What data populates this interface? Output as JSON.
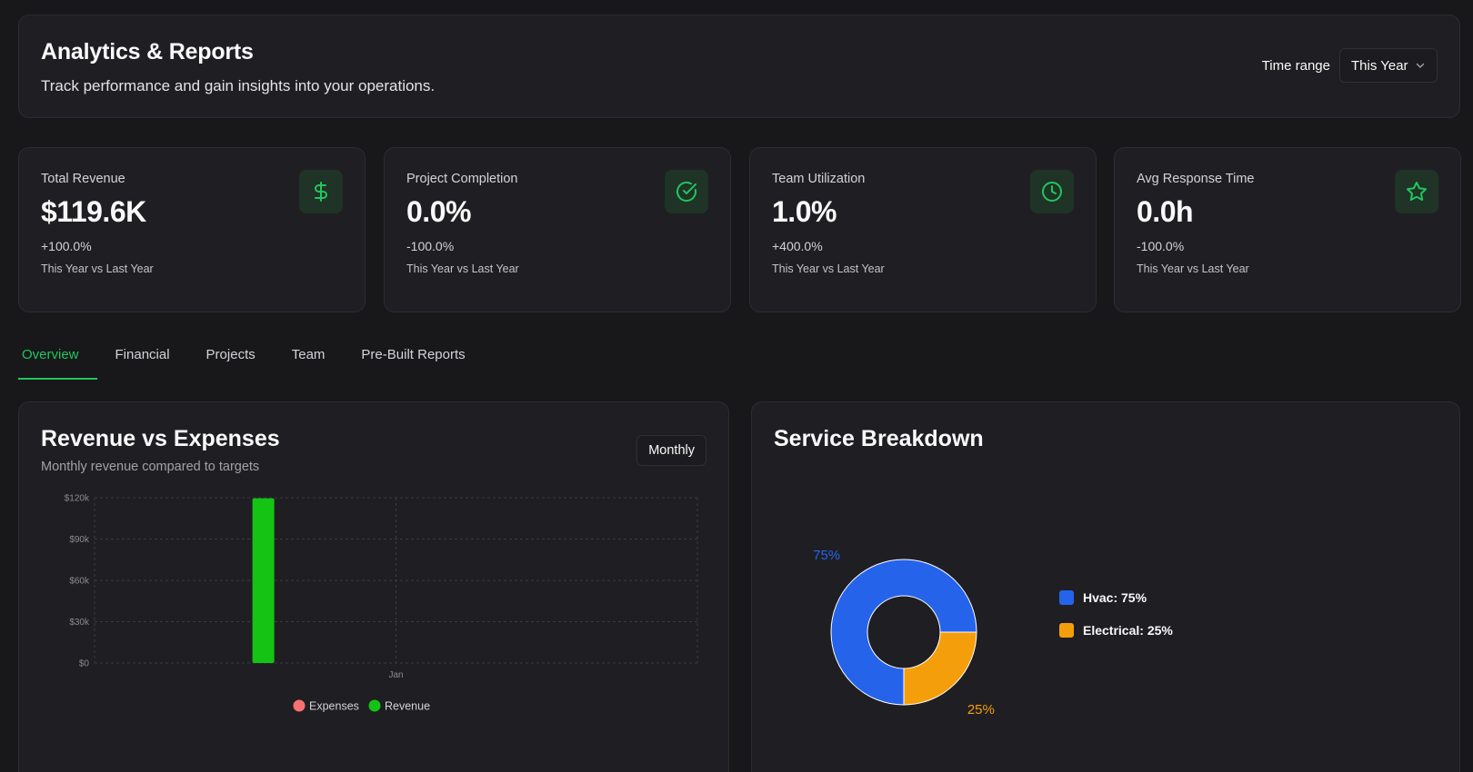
{
  "header": {
    "title": "Analytics & Reports",
    "subtitle": "Track performance and gain insights into your operations.",
    "time_range_label": "Time range",
    "time_range_value": "This Year"
  },
  "kpis": [
    {
      "label": "Total Revenue",
      "value": "$119.6K",
      "change": "+100.0%",
      "period": "This Year vs Last Year",
      "icon": "dollar-icon"
    },
    {
      "label": "Project Completion",
      "value": "0.0%",
      "change": "-100.0%",
      "period": "This Year vs Last Year",
      "icon": "check-circle-icon"
    },
    {
      "label": "Team Utilization",
      "value": "1.0%",
      "change": "+400.0%",
      "period": "This Year vs Last Year",
      "icon": "clock-icon"
    },
    {
      "label": "Avg Response Time",
      "value": "0.0h",
      "change": "-100.0%",
      "period": "This Year vs Last Year",
      "icon": "star-icon"
    }
  ],
  "tabs": [
    "Overview",
    "Financial",
    "Projects",
    "Team",
    "Pre-Built Reports"
  ],
  "active_tab": "Overview",
  "revenue_chart": {
    "title": "Revenue vs Expenses",
    "subtitle": "Monthly revenue compared to targets",
    "period_button": "Monthly"
  },
  "service_chart": {
    "title": "Service Breakdown"
  },
  "colors": {
    "accent": "#22c55e",
    "revenue": "#14c414",
    "expenses": "#f87171",
    "hvac": "#2563eb",
    "electrical": "#f59e0b"
  },
  "chart_data": [
    {
      "type": "bar",
      "title": "Revenue vs Expenses",
      "categories": [
        "Jan"
      ],
      "series": [
        {
          "name": "Expenses",
          "values": [
            0
          ]
        },
        {
          "name": "Revenue",
          "values": [
            119600
          ]
        }
      ],
      "yticks": [
        "$0",
        "$30k",
        "$60k",
        "$90k",
        "$120k"
      ],
      "ylim": [
        0,
        120000
      ],
      "legend": "bottom"
    },
    {
      "type": "pie",
      "title": "Service Breakdown",
      "slices": [
        {
          "label": "Hvac",
          "value": 75,
          "pct_label": "75%",
          "legend_text": "Hvac: 75%"
        },
        {
          "label": "Electrical",
          "value": 25,
          "pct_label": "25%",
          "legend_text": "Electrical: 25%"
        }
      ],
      "legend": "right"
    }
  ]
}
